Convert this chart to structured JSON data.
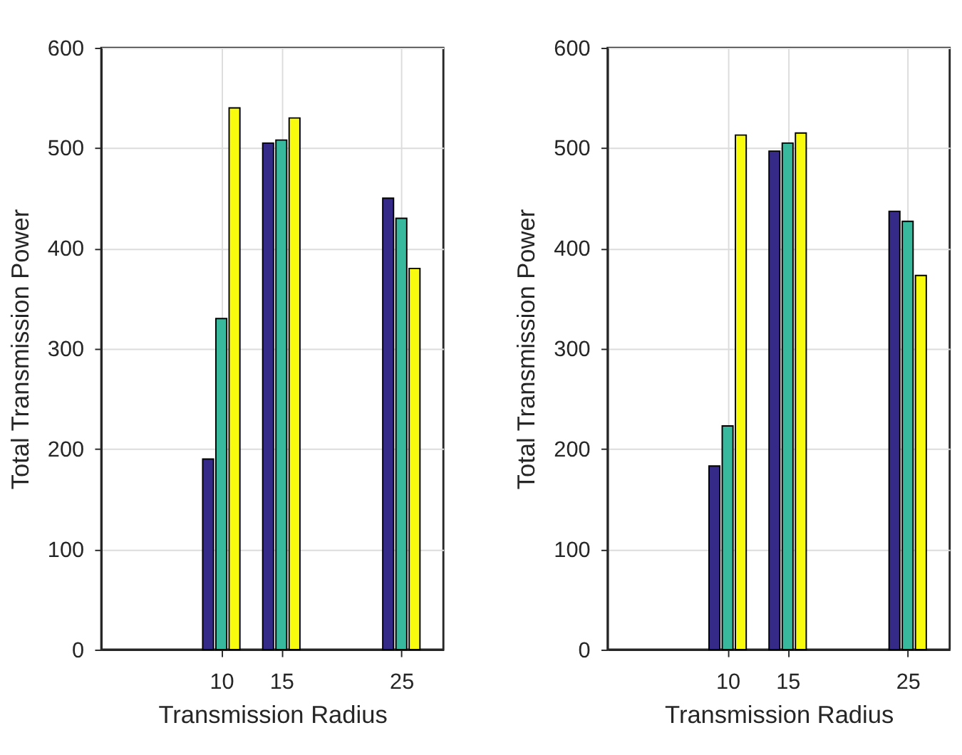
{
  "chart_data": [
    {
      "type": "bar",
      "xlabel": "Transmission Radius",
      "ylabel": "Total Transmission Power",
      "x": [
        10,
        15,
        25
      ],
      "xlim": [
        0,
        28.5
      ],
      "xticks": [
        10,
        15,
        25
      ],
      "ylim": [
        0,
        600
      ],
      "yticks": [
        0,
        100,
        200,
        300,
        400,
        500,
        600
      ],
      "grid": true,
      "legend": false,
      "series": [
        {
          "color": "#352a87",
          "values": [
            190,
            505,
            450
          ]
        },
        {
          "color": "#38b99e",
          "values": [
            330,
            508,
            430
          ]
        },
        {
          "color": "#f9fb0e",
          "values": [
            540,
            530,
            380
          ]
        }
      ]
    },
    {
      "type": "bar",
      "xlabel": "Transmission Radius",
      "ylabel": "Total Transmission Power",
      "x": [
        10,
        15,
        25
      ],
      "xlim": [
        0,
        28.5
      ],
      "xticks": [
        10,
        15,
        25
      ],
      "ylim": [
        0,
        600
      ],
      "yticks": [
        0,
        100,
        200,
        300,
        400,
        500,
        600
      ],
      "grid": true,
      "legend": false,
      "series": [
        {
          "color": "#352a87",
          "values": [
            183,
            497,
            437
          ]
        },
        {
          "color": "#38b99e",
          "values": [
            223,
            505,
            427
          ]
        },
        {
          "color": "#f9fb0e",
          "values": [
            513,
            515,
            373
          ]
        }
      ]
    }
  ]
}
